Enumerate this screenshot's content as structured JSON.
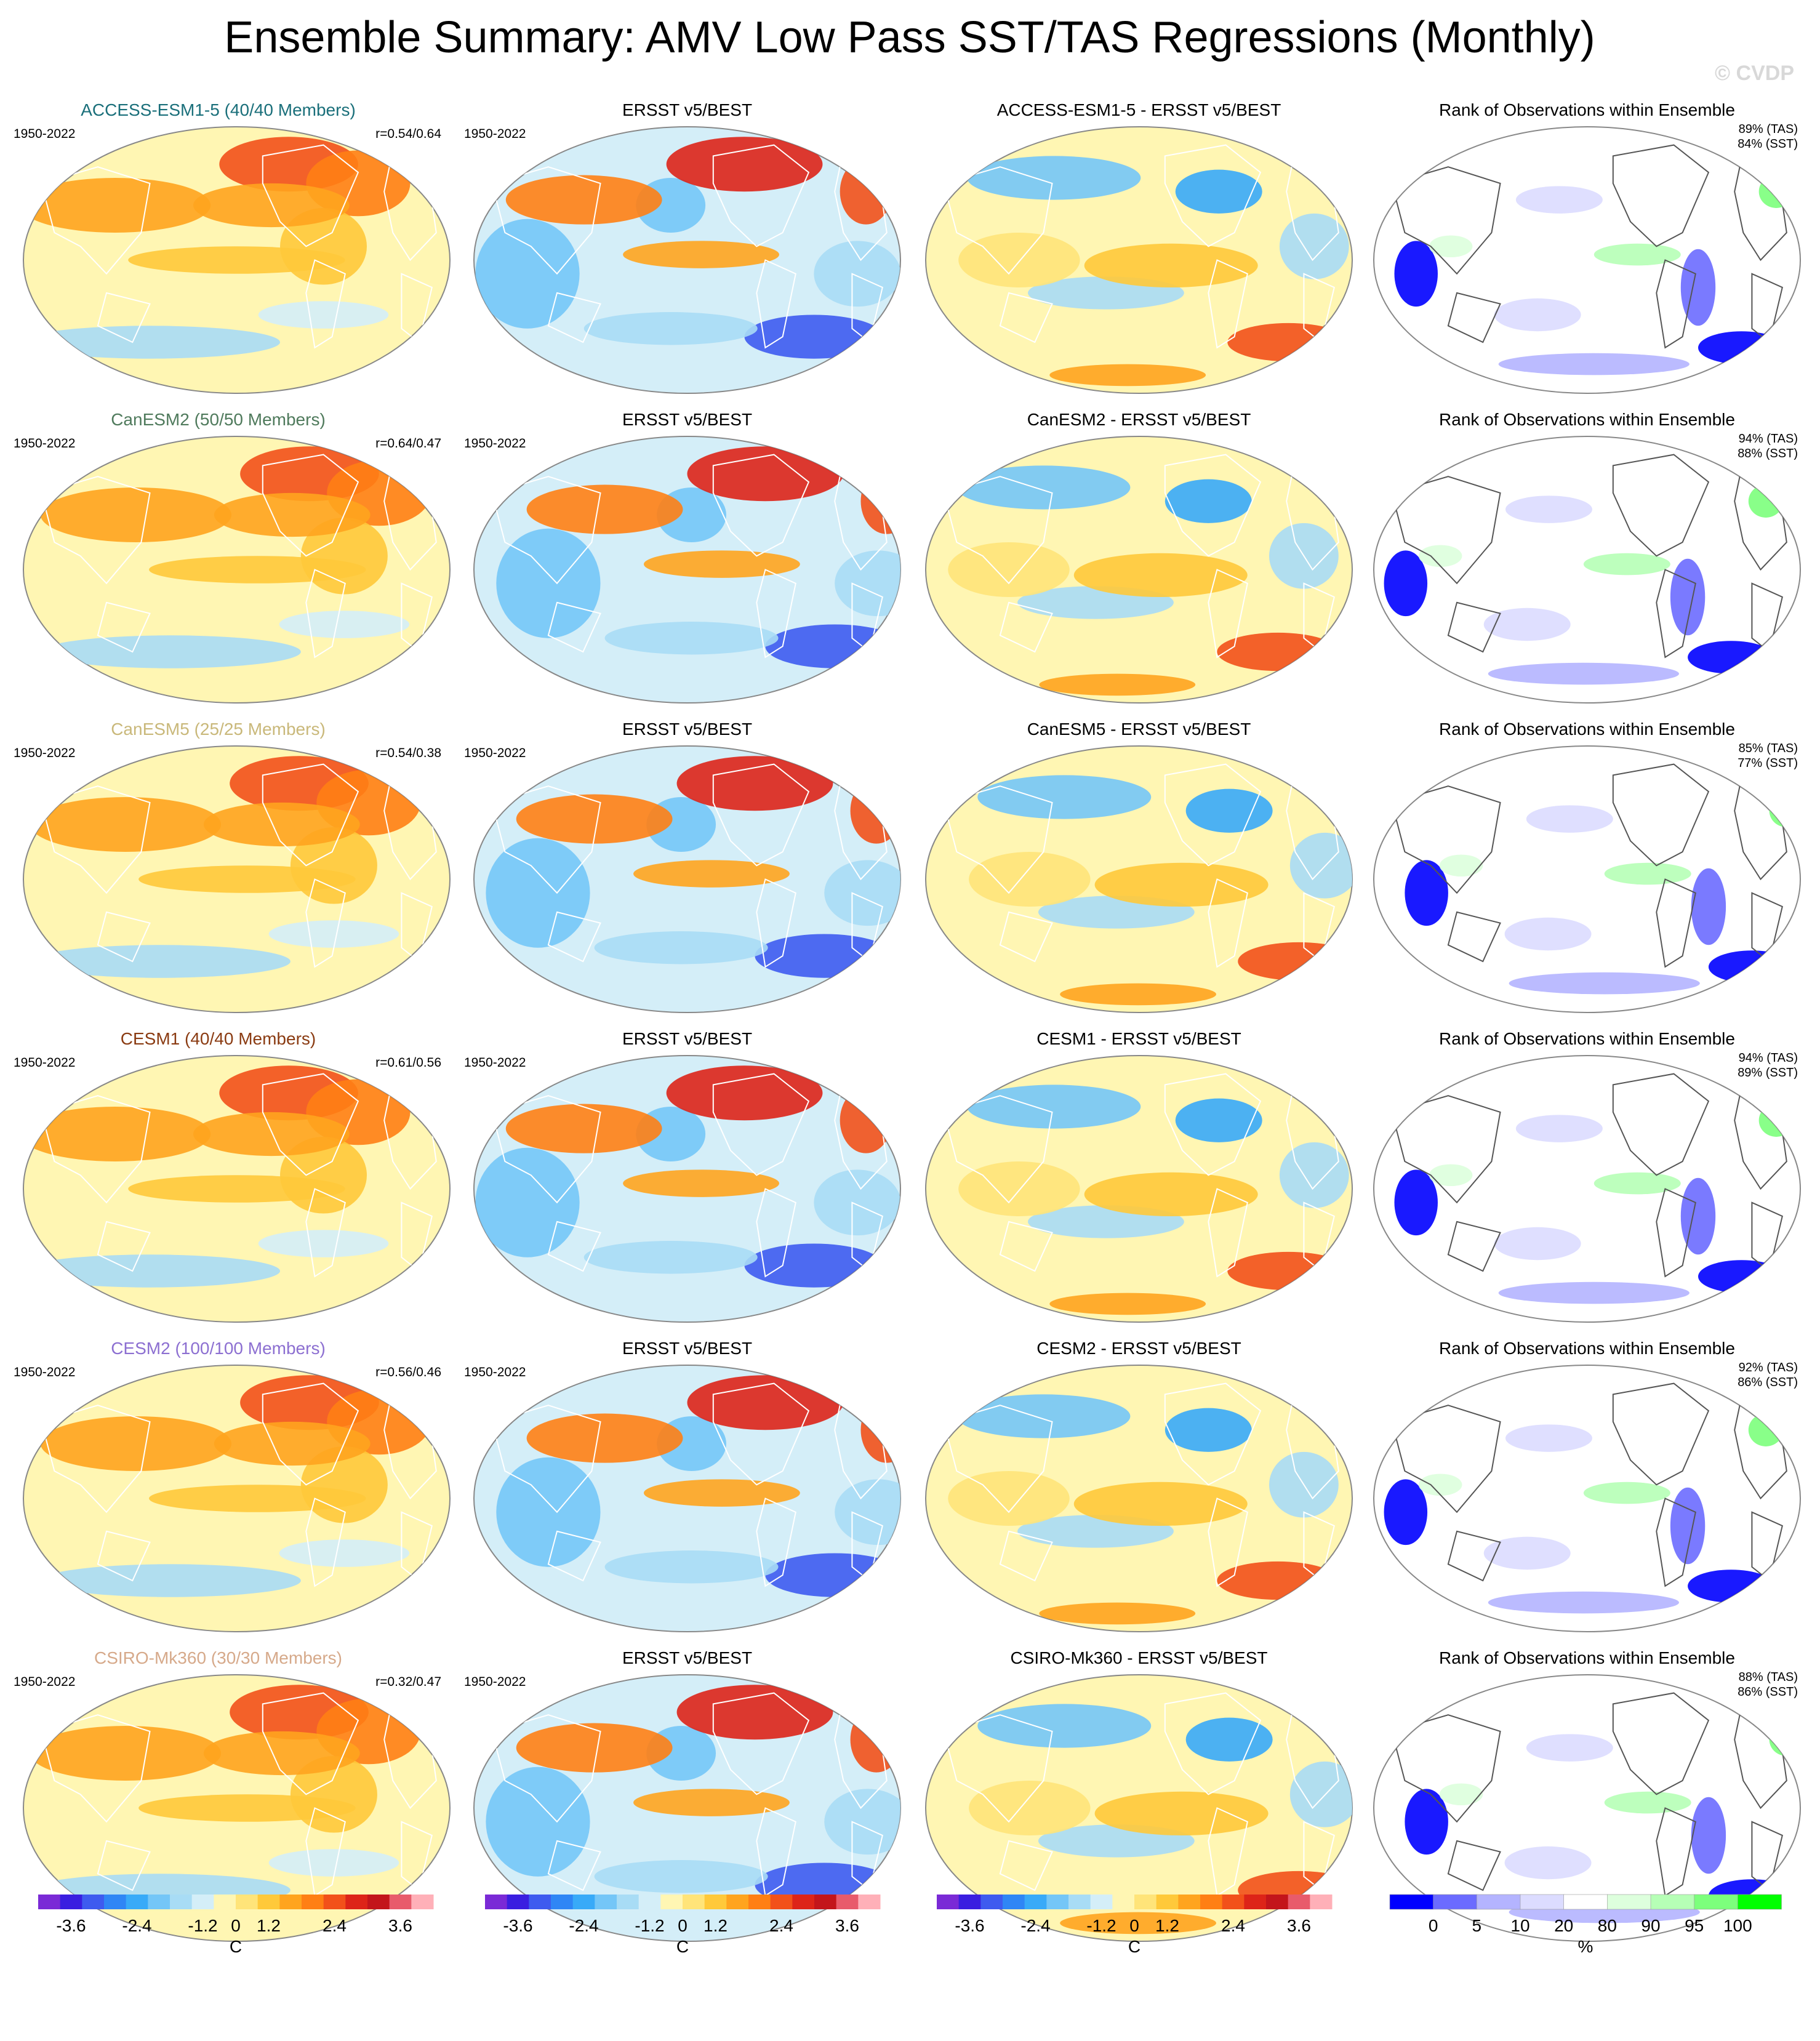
{
  "title": "Ensemble Summary: AMV Low Pass SST/TAS Regressions (Monthly)",
  "watermark": "© CVDP",
  "period": "1950-2022",
  "obs_label": "ERSST v5/BEST",
  "rank_title": "Rank of Observations within Ensemble",
  "rows": [
    {
      "model": "ACCESS-ESM1-5 (40/40 Members)",
      "model_color": "#1a6f7a",
      "r": "r=0.54/0.64",
      "diff_title": "ACCESS-ESM1-5 - ERSST v5/BEST",
      "tas": "89% (TAS)",
      "sst": "84% (SST)"
    },
    {
      "model": "CanESM2 (50/50 Members)",
      "model_color": "#4f7a5c",
      "r": "r=0.64/0.47",
      "diff_title": "CanESM2 - ERSST v5/BEST",
      "tas": "94% (TAS)",
      "sst": "88% (SST)"
    },
    {
      "model": "CanESM5 (25/25 Members)",
      "model_color": "#c9b87a",
      "r": "r=0.54/0.38",
      "diff_title": "CanESM5 - ERSST v5/BEST",
      "tas": "85% (TAS)",
      "sst": "77% (SST)"
    },
    {
      "model": "CESM1 (40/40 Members)",
      "model_color": "#8a3b12",
      "r": "r=0.61/0.56",
      "diff_title": "CESM1 - ERSST v5/BEST",
      "tas": "94% (TAS)",
      "sst": "89% (SST)"
    },
    {
      "model": "CESM2 (100/100 Members)",
      "model_color": "#8c6fd1",
      "r": "r=0.56/0.46",
      "diff_title": "CESM2 - ERSST v5/BEST",
      "tas": "92% (TAS)",
      "sst": "86% (SST)"
    },
    {
      "model": "CSIRO-Mk360 (30/30 Members)",
      "model_color": "#d6a98a",
      "r": "r=0.32/0.47",
      "diff_title": "CSIRO-Mk360 - ERSST v5/BEST",
      "tas": "88% (TAS)",
      "sst": "86% (SST)"
    }
  ],
  "colorbars": {
    "temperature": {
      "colors": [
        "#7a2ad6",
        "#3a1ee0",
        "#3e5bef",
        "#2f86f5",
        "#38aaf8",
        "#74c6f7",
        "#a8dcf5",
        "#d4eef8",
        "#fff6b3",
        "#ffe479",
        "#ffc93a",
        "#ffa41e",
        "#ff7f14",
        "#f2511a",
        "#dd2418",
        "#c3151b",
        "#e85b6b",
        "#ffb0b8"
      ],
      "ticks": [
        "-3.6",
        "-2.4",
        "-1.2",
        "0",
        "1.2",
        "2.4",
        "3.6"
      ],
      "tick_positions": [
        1.5,
        4.5,
        7.5,
        9,
        10.5,
        13.5,
        16.5
      ],
      "units": "C"
    },
    "rank": {
      "colors": [
        "#0000ff",
        "#6b6bff",
        "#b4b4ff",
        "#dcdcff",
        "#ffffff",
        "#ddffdd",
        "#b6ffb6",
        "#7cff7c",
        "#00ff00"
      ],
      "ticks": [
        "0",
        "5",
        "10",
        "20",
        "80",
        "90",
        "95",
        "100"
      ],
      "tick_positions": [
        1,
        2,
        3,
        4,
        5,
        6,
        7,
        8
      ],
      "units": "%"
    }
  }
}
